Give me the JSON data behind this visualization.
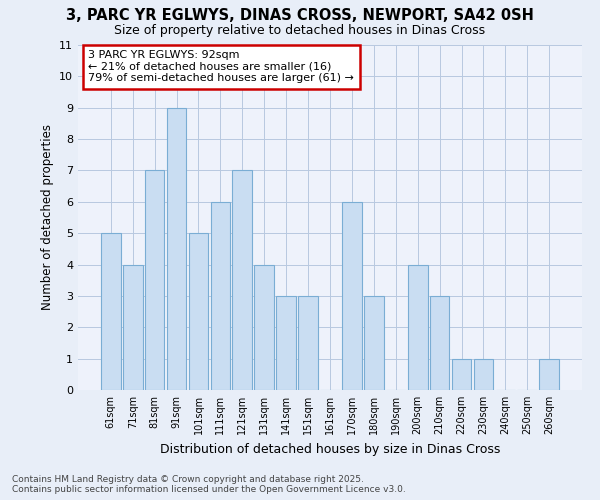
{
  "title": "3, PARC YR EGLWYS, DINAS CROSS, NEWPORT, SA42 0SH",
  "subtitle": "Size of property relative to detached houses in Dinas Cross",
  "xlabel": "Distribution of detached houses by size in Dinas Cross",
  "ylabel": "Number of detached properties",
  "categories": [
    "61sqm",
    "71sqm",
    "81sqm",
    "91sqm",
    "101sqm",
    "111sqm",
    "121sqm",
    "131sqm",
    "141sqm",
    "151sqm",
    "161sqm",
    "170sqm",
    "180sqm",
    "190sqm",
    "200sqm",
    "210sqm",
    "220sqm",
    "230sqm",
    "240sqm",
    "250sqm",
    "260sqm"
  ],
  "values": [
    5,
    4,
    7,
    9,
    5,
    6,
    7,
    4,
    3,
    3,
    0,
    6,
    3,
    0,
    4,
    3,
    1,
    1,
    0,
    0,
    1
  ],
  "bar_color": "#c9ddf2",
  "bar_edge_color": "#7aadd4",
  "annotation_text": "3 PARC YR EGLWYS: 92sqm\n← 21% of detached houses are smaller (16)\n79% of semi-detached houses are larger (61) →",
  "annotation_box_color": "#ffffff",
  "annotation_box_edge": "#cc0000",
  "ylim": [
    0,
    11
  ],
  "yticks": [
    0,
    1,
    2,
    3,
    4,
    5,
    6,
    7,
    8,
    9,
    10,
    11
  ],
  "footnote": "Contains HM Land Registry data © Crown copyright and database right 2025.\nContains public sector information licensed under the Open Government Licence v3.0.",
  "bg_color": "#e8eef8",
  "plot_bg_color": "#eef2fb",
  "grid_color": "#b8c8e0"
}
